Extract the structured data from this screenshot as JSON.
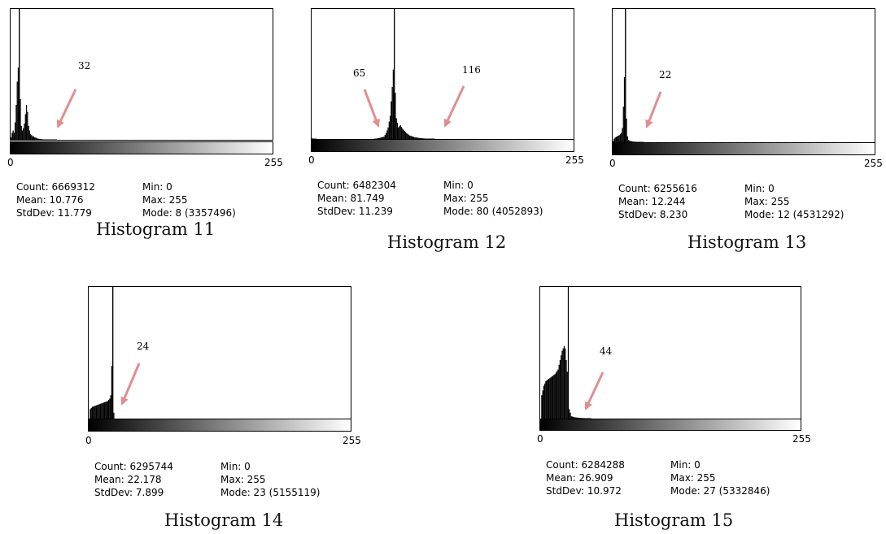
{
  "chart_data": [
    {
      "type": "histogram",
      "title": "Histogram 11",
      "xlim": [
        0,
        255
      ],
      "ticks": [
        "0",
        "255"
      ],
      "annotation": "32",
      "annotation_value": 32,
      "stats": {
        "count": "Count: 6669312",
        "mean": "Mean: 10.776",
        "stddev": "StdDev: 11.779",
        "min": "Min: 0",
        "max": "Max: 255",
        "mode": "Mode: 8 (3357496)"
      },
      "mode_bin": 8,
      "peaks": [
        [
          0,
          0.02
        ],
        [
          1,
          0.06
        ],
        [
          2,
          0.08
        ],
        [
          3,
          0.06
        ],
        [
          4,
          0.15
        ],
        [
          5,
          0.3
        ],
        [
          6,
          0.5
        ],
        [
          7,
          0.62
        ],
        [
          8,
          1.0
        ],
        [
          9,
          0.35
        ],
        [
          10,
          0.12
        ],
        [
          11,
          0.08
        ],
        [
          12,
          0.1
        ],
        [
          13,
          0.14
        ],
        [
          14,
          0.22
        ],
        [
          15,
          0.3
        ],
        [
          16,
          0.24
        ],
        [
          17,
          0.12
        ],
        [
          18,
          0.08
        ],
        [
          19,
          0.05
        ],
        [
          20,
          0.04
        ],
        [
          21,
          0.03
        ],
        [
          22,
          0.03
        ],
        [
          23,
          0.02
        ],
        [
          24,
          0.02
        ],
        [
          25,
          0.015
        ],
        [
          26,
          0.01
        ],
        [
          28,
          0.008
        ],
        [
          30,
          0.005
        ],
        [
          34,
          0.003
        ],
        [
          40,
          0.002
        ],
        [
          45,
          0
        ]
      ]
    },
    {
      "type": "histogram",
      "title": "Histogram 12",
      "xlim": [
        0,
        255
      ],
      "ticks": [
        "0",
        "255"
      ],
      "annotations": [
        "65",
        "116"
      ],
      "annotation_values": [
        65,
        116
      ],
      "stats": {
        "count": "Count: 6482304",
        "mean": "Mean: 81.749",
        "stddev": "StdDev: 11.239",
        "min": "Min: 0",
        "max": "Max: 255",
        "mode": "Mode: 80 (4052893)"
      },
      "mode_bin": 80,
      "peaks": [
        [
          0,
          0.005
        ],
        [
          2,
          0.003
        ],
        [
          5,
          0
        ],
        [
          60,
          0
        ],
        [
          63,
          0.004
        ],
        [
          66,
          0.01
        ],
        [
          70,
          0.02
        ],
        [
          72,
          0.05
        ],
        [
          74,
          0.1
        ],
        [
          76,
          0.2
        ],
        [
          78,
          0.45
        ],
        [
          79,
          0.6
        ],
        [
          80,
          1.0
        ],
        [
          81,
          0.4
        ],
        [
          82,
          0.18
        ],
        [
          84,
          0.1
        ],
        [
          86,
          0.12
        ],
        [
          88,
          0.09
        ],
        [
          90,
          0.07
        ],
        [
          92,
          0.05
        ],
        [
          95,
          0.03
        ],
        [
          100,
          0.015
        ],
        [
          105,
          0.008
        ],
        [
          110,
          0.004
        ],
        [
          115,
          0.002
        ],
        [
          120,
          0
        ]
      ]
    },
    {
      "type": "histogram",
      "title": "Histogram 13",
      "xlim": [
        0,
        255
      ],
      "ticks": [
        "0",
        "255"
      ],
      "annotation": "22",
      "annotation_value": 22,
      "stats": {
        "count": "Count: 6255616",
        "mean": "Mean: 12.244",
        "stddev": "StdDev: 8.230",
        "min": "Min: 0",
        "max": "Max: 255",
        "mode": "Mode: 12 (4531292)"
      },
      "mode_bin": 12,
      "peaks": [
        [
          0,
          0.01
        ],
        [
          1,
          0.03
        ],
        [
          2,
          0.04
        ],
        [
          4,
          0.05
        ],
        [
          6,
          0.06
        ],
        [
          8,
          0.08
        ],
        [
          9,
          0.12
        ],
        [
          10,
          0.3
        ],
        [
          11,
          0.55
        ],
        [
          12,
          1.0
        ],
        [
          13,
          0.2
        ],
        [
          14,
          0.05
        ],
        [
          15,
          0.02
        ],
        [
          17,
          0.01
        ],
        [
          20,
          0.005
        ],
        [
          25,
          0.002
        ],
        [
          30,
          0
        ]
      ]
    },
    {
      "type": "histogram",
      "title": "Histogram 14",
      "xlim": [
        0,
        255
      ],
      "ticks": [
        "0",
        "255"
      ],
      "annotation": "24",
      "annotation_value": 24,
      "stats": {
        "count": "Count: 6295744",
        "mean": "Mean: 22.178",
        "stddev": "StdDev: 7.899",
        "min": "Min: 0",
        "max": "Max: 255",
        "mode": "Mode: 23 (5155119)"
      },
      "mode_bin": 23,
      "peaks": [
        [
          0,
          0.0
        ],
        [
          1,
          0.08
        ],
        [
          3,
          0.1
        ],
        [
          6,
          0.11
        ],
        [
          9,
          0.12
        ],
        [
          12,
          0.13
        ],
        [
          15,
          0.14
        ],
        [
          18,
          0.15
        ],
        [
          20,
          0.17
        ],
        [
          21,
          0.2
        ],
        [
          22,
          0.45
        ],
        [
          23,
          1.0
        ],
        [
          24,
          0.05
        ],
        [
          25,
          0.0
        ]
      ]
    },
    {
      "type": "histogram",
      "title": "Histogram 15",
      "xlim": [
        0,
        255
      ],
      "ticks": [
        "0",
        "255"
      ],
      "annotation": "44",
      "annotation_value": 44,
      "stats": {
        "count": "Count: 6284288",
        "mean": "Mean: 26.909",
        "stddev": "StdDev: 10.972",
        "min": "Min: 0",
        "max": "Max: 255",
        "mode": "Mode: 27 (5332846)"
      },
      "mode_bin": 27,
      "peaks": [
        [
          0,
          0.0
        ],
        [
          1,
          0.2
        ],
        [
          3,
          0.28
        ],
        [
          5,
          0.32
        ],
        [
          8,
          0.34
        ],
        [
          11,
          0.36
        ],
        [
          14,
          0.38
        ],
        [
          17,
          0.42
        ],
        [
          19,
          0.5
        ],
        [
          21,
          0.58
        ],
        [
          23,
          0.62
        ],
        [
          24,
          0.6
        ],
        [
          25,
          0.5
        ],
        [
          26,
          0.4
        ],
        [
          27,
          1.0
        ],
        [
          28,
          0.08
        ],
        [
          30,
          0.02
        ],
        [
          34,
          0.01
        ],
        [
          40,
          0.005
        ],
        [
          45,
          0.003
        ],
        [
          50,
          0
        ]
      ]
    }
  ]
}
